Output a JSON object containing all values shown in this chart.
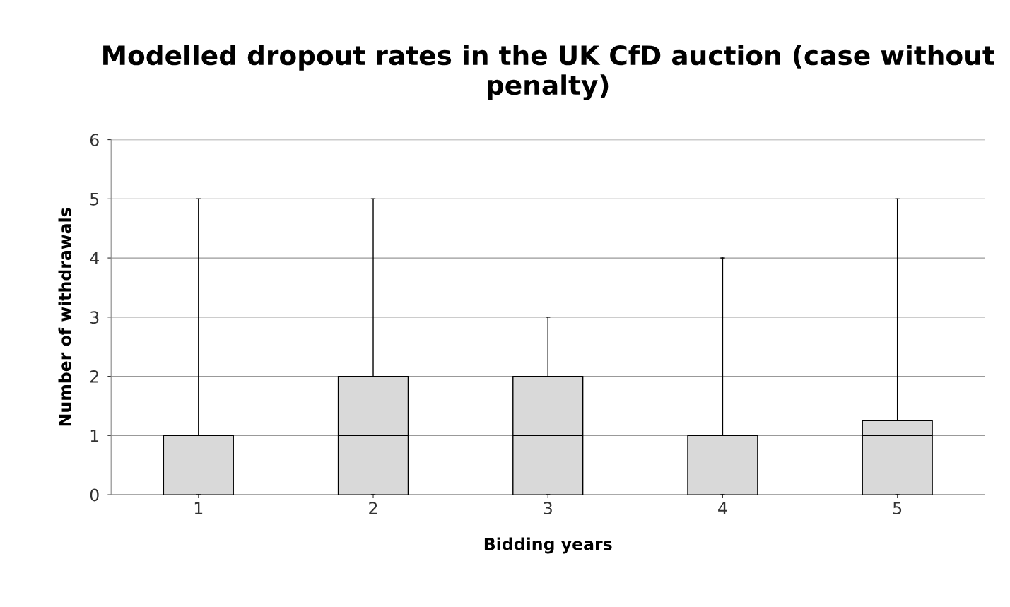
{
  "chart_data": {
    "type": "box",
    "title": "Modelled dropout rates in the UK CfD auction (case without penalty)",
    "xlabel": "Bidding years",
    "ylabel": "Number of withdrawals",
    "categories": [
      "1",
      "2",
      "3",
      "4",
      "5"
    ],
    "boxes": [
      {
        "low": 0,
        "q1": 0,
        "median": 1,
        "q3": 1,
        "high": 5
      },
      {
        "low": 0,
        "q1": 0,
        "median": 1,
        "q3": 2,
        "high": 5
      },
      {
        "low": 0,
        "q1": 0,
        "median": 1,
        "q3": 2,
        "high": 3
      },
      {
        "low": 0,
        "q1": 0,
        "median": 1,
        "q3": 1,
        "high": 4
      },
      {
        "low": 0,
        "q1": 0,
        "median": 1,
        "q3": 1.25,
        "high": 5
      }
    ],
    "color": "#d9d9d9",
    "ylim": [
      0,
      6
    ],
    "yticks": [
      0,
      1,
      2,
      3,
      4,
      5,
      6
    ],
    "grid": "y"
  }
}
